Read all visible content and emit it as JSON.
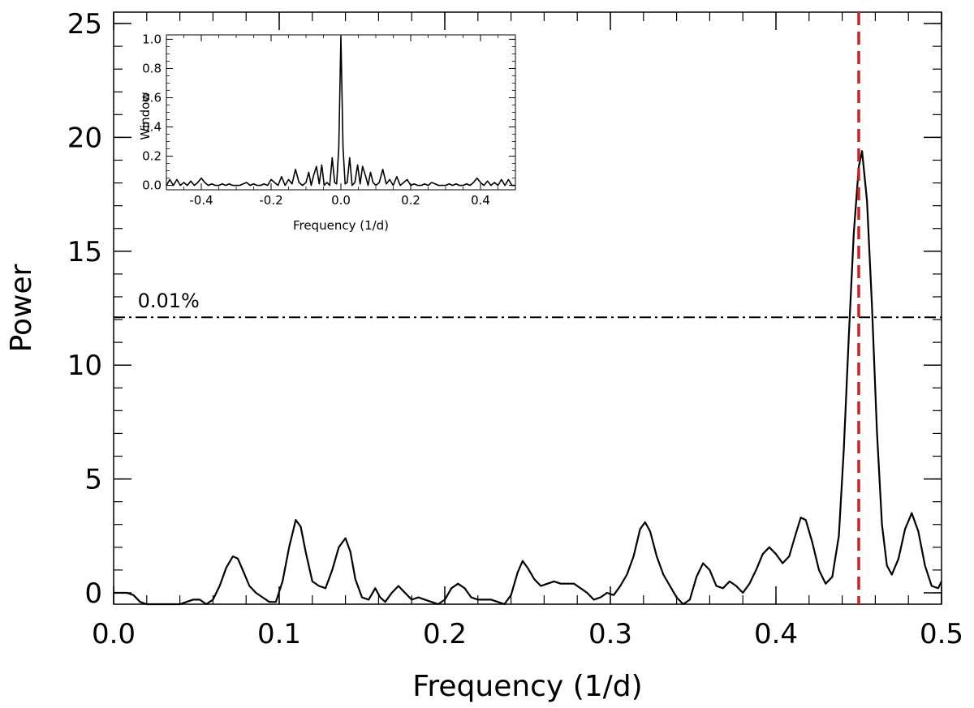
{
  "chart_data": [
    {
      "type": "line",
      "xlabel": "Frequency (1/d)",
      "ylabel": "Power",
      "xlim": [
        0.0,
        0.5
      ],
      "ylim": [
        -0.5,
        25.5
      ],
      "xticks": [
        "0.0",
        "0.1",
        "0.2",
        "0.3",
        "0.4",
        "0.5"
      ],
      "yticks": [
        "0",
        "5",
        "10",
        "15",
        "20",
        "25"
      ],
      "grid": false,
      "series": [
        {
          "color": "#000000",
          "x": [
            0.0,
            0.004,
            0.008,
            0.012,
            0.016,
            0.02,
            0.024,
            0.028,
            0.032,
            0.036,
            0.04,
            0.044,
            0.048,
            0.052,
            0.056,
            0.06,
            0.064,
            0.068,
            0.072,
            0.075,
            0.078,
            0.082,
            0.086,
            0.09,
            0.094,
            0.098,
            0.102,
            0.106,
            0.11,
            0.113,
            0.116,
            0.12,
            0.124,
            0.128,
            0.132,
            0.136,
            0.14,
            0.143,
            0.146,
            0.15,
            0.154,
            0.158,
            0.161,
            0.164,
            0.168,
            0.172,
            0.176,
            0.18,
            0.184,
            0.188,
            0.192,
            0.196,
            0.2,
            0.204,
            0.208,
            0.212,
            0.216,
            0.22,
            0.224,
            0.228,
            0.232,
            0.236,
            0.24,
            0.244,
            0.247,
            0.25,
            0.254,
            0.258,
            0.262,
            0.266,
            0.27,
            0.274,
            0.278,
            0.282,
            0.286,
            0.29,
            0.294,
            0.298,
            0.302,
            0.306,
            0.31,
            0.314,
            0.318,
            0.321,
            0.324,
            0.328,
            0.332,
            0.336,
            0.34,
            0.344,
            0.348,
            0.352,
            0.356,
            0.36,
            0.364,
            0.368,
            0.372,
            0.376,
            0.38,
            0.384,
            0.388,
            0.392,
            0.396,
            0.4,
            0.404,
            0.408,
            0.412,
            0.415,
            0.418,
            0.422,
            0.426,
            0.43,
            0.434,
            0.438,
            0.441,
            0.444,
            0.447,
            0.45,
            0.452,
            0.455,
            0.458,
            0.461,
            0.464,
            0.467,
            0.47,
            0.474,
            0.478,
            0.482,
            0.486,
            0.49,
            0.494,
            0.498,
            0.5
          ],
          "values": [
            0.0,
            0.0,
            0.0,
            -0.1,
            -0.4,
            -0.6,
            -0.5,
            -0.6,
            -0.5,
            -0.6,
            -0.5,
            -0.4,
            -0.3,
            -0.3,
            -0.5,
            -0.3,
            0.3,
            1.1,
            1.6,
            1.5,
            1.0,
            0.3,
            0.0,
            -0.2,
            -0.4,
            -0.4,
            0.5,
            2.0,
            3.2,
            2.9,
            1.8,
            0.5,
            0.3,
            0.2,
            1.0,
            2.0,
            2.4,
            1.8,
            0.6,
            -0.2,
            -0.3,
            0.2,
            -0.2,
            -0.4,
            0.0,
            0.3,
            0.0,
            -0.3,
            -0.2,
            -0.3,
            -0.4,
            -0.5,
            -0.3,
            0.2,
            0.4,
            0.2,
            -0.2,
            -0.3,
            -0.3,
            -0.3,
            -0.4,
            -0.5,
            -0.1,
            0.9,
            1.4,
            1.1,
            0.6,
            0.3,
            0.4,
            0.5,
            0.4,
            0.4,
            0.4,
            0.2,
            0.0,
            -0.3,
            -0.2,
            0.0,
            -0.1,
            0.3,
            0.8,
            1.6,
            2.8,
            3.1,
            2.7,
            1.6,
            0.8,
            0.3,
            -0.2,
            -0.6,
            -0.3,
            0.7,
            1.3,
            1.0,
            0.3,
            0.2,
            0.5,
            0.3,
            0.0,
            0.4,
            1.0,
            1.7,
            2.0,
            1.7,
            1.3,
            1.6,
            2.6,
            3.3,
            3.2,
            2.2,
            1.0,
            0.4,
            0.7,
            2.5,
            6.3,
            11.3,
            15.8,
            18.7,
            19.4,
            17.2,
            12.6,
            7.1,
            3.0,
            1.2,
            0.8,
            1.5,
            2.8,
            3.5,
            2.7,
            1.2,
            0.3,
            0.2,
            0.5
          ]
        }
      ],
      "annotations": [
        {
          "text": "0.01%",
          "kind": "hline",
          "y": 12.1,
          "style": "dash-dot",
          "color": "#000000"
        },
        {
          "kind": "vline",
          "x": 0.45,
          "style": "dashed",
          "color": "#cc2222"
        }
      ]
    },
    {
      "type": "line",
      "xlabel": "Frequency (1/d)",
      "ylabel": "Window",
      "xlim": [
        -0.5,
        0.5
      ],
      "ylim": [
        -0.03,
        1.03
      ],
      "xticks": [
        "-0.4",
        "-0.2",
        "0.0",
        "0.2",
        "0.4"
      ],
      "yticks": [
        "0.0",
        "0.2",
        "0.4",
        "0.6",
        "0.8",
        "1.0"
      ],
      "grid": false,
      "series": [
        {
          "color": "#000000",
          "x": [
            -0.5,
            -0.49,
            -0.48,
            -0.47,
            -0.46,
            -0.45,
            -0.44,
            -0.43,
            -0.42,
            -0.41,
            -0.4,
            -0.39,
            -0.38,
            -0.37,
            -0.36,
            -0.35,
            -0.34,
            -0.33,
            -0.32,
            -0.31,
            -0.3,
            -0.29,
            -0.28,
            -0.27,
            -0.26,
            -0.25,
            -0.24,
            -0.23,
            -0.22,
            -0.21,
            -0.2,
            -0.19,
            -0.18,
            -0.17,
            -0.16,
            -0.15,
            -0.14,
            -0.13,
            -0.12,
            -0.11,
            -0.1,
            -0.092,
            -0.085,
            -0.078,
            -0.07,
            -0.062,
            -0.055,
            -0.048,
            -0.04,
            -0.032,
            -0.025,
            -0.018,
            -0.012,
            -0.006,
            0.0,
            0.006,
            0.012,
            0.018,
            0.025,
            0.032,
            0.04,
            0.048,
            0.055,
            0.062,
            0.07,
            0.078,
            0.085,
            0.092,
            0.1,
            0.11,
            0.12,
            0.13,
            0.14,
            0.15,
            0.16,
            0.17,
            0.18,
            0.19,
            0.2,
            0.21,
            0.22,
            0.23,
            0.24,
            0.25,
            0.26,
            0.27,
            0.28,
            0.29,
            0.3,
            0.31,
            0.32,
            0.33,
            0.34,
            0.35,
            0.36,
            0.37,
            0.38,
            0.39,
            0.4,
            0.41,
            0.42,
            0.43,
            0.44,
            0.45,
            0.46,
            0.47,
            0.48,
            0.49,
            0.5
          ],
          "values": [
            0.0,
            0.04,
            0.0,
            0.04,
            0.0,
            0.02,
            0.0,
            0.03,
            0.0,
            0.02,
            0.05,
            0.02,
            0.0,
            0.01,
            0.0,
            0.0,
            0.01,
            0.0,
            0.01,
            0.0,
            0.0,
            0.0,
            0.01,
            0.02,
            0.0,
            0.01,
            0.0,
            0.0,
            0.01,
            0.0,
            0.04,
            0.02,
            0.0,
            0.06,
            0.0,
            0.04,
            0.01,
            0.11,
            0.02,
            0.0,
            0.02,
            0.09,
            0.0,
            0.07,
            0.13,
            0.01,
            0.14,
            0.0,
            0.02,
            0.0,
            0.19,
            0.02,
            0.01,
            0.26,
            1.02,
            0.26,
            0.01,
            0.02,
            0.19,
            0.0,
            0.02,
            0.14,
            0.01,
            0.13,
            0.07,
            0.0,
            0.09,
            0.02,
            0.0,
            0.02,
            0.11,
            0.01,
            0.04,
            0.0,
            0.06,
            0.0,
            0.02,
            0.04,
            0.0,
            0.01,
            0.0,
            0.0,
            0.01,
            0.0,
            0.02,
            0.01,
            0.0,
            0.0,
            0.0,
            0.01,
            0.0,
            0.01,
            0.0,
            0.0,
            0.01,
            0.0,
            0.02,
            0.05,
            0.02,
            0.0,
            0.03,
            0.0,
            0.02,
            0.0,
            0.04,
            0.0,
            0.04,
            0.0,
            0.0
          ]
        }
      ]
    }
  ]
}
